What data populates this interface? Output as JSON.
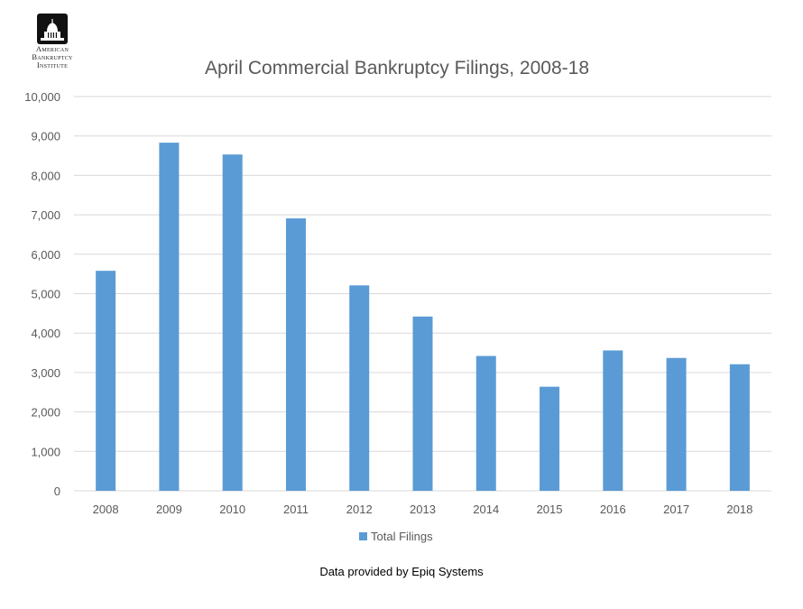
{
  "logo": {
    "line1": "American",
    "line2": "Bankruptcy",
    "line3": "Institute"
  },
  "footer": {
    "note": "Data provided by Epiq Systems"
  },
  "colors": {
    "bar": "#5b9bd5",
    "grid": "#d9d9d9",
    "axis_text": "#595959",
    "title": "#595959"
  },
  "chart_data": {
    "type": "bar",
    "title": "April Commercial Bankruptcy Filings, 2008-18",
    "categories": [
      "2008",
      "2009",
      "2010",
      "2011",
      "2012",
      "2013",
      "2014",
      "2015",
      "2016",
      "2017",
      "2018"
    ],
    "series": [
      {
        "name": "Total Filings",
        "values": [
          5580,
          8830,
          8530,
          6910,
          5210,
          4420,
          3420,
          2640,
          3560,
          3370,
          3210
        ]
      }
    ],
    "ylim": [
      0,
      10000
    ],
    "yticks": [
      "0",
      "1,000",
      "2,000",
      "3,000",
      "4,000",
      "5,000",
      "6,000",
      "7,000",
      "8,000",
      "9,000",
      "10,000"
    ],
    "grid": true,
    "legend": "bottom"
  }
}
